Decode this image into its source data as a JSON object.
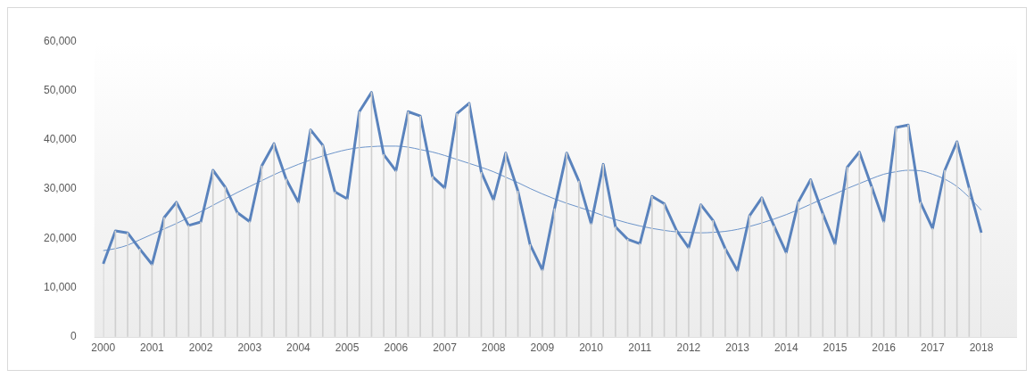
{
  "chart_data": {
    "type": "line",
    "categories": [
      "2000",
      null,
      null,
      null,
      "2001",
      null,
      null,
      null,
      "2002",
      null,
      null,
      null,
      "2003",
      null,
      null,
      null,
      "2004",
      null,
      null,
      null,
      "2005",
      null,
      null,
      null,
      "2006",
      null,
      null,
      null,
      "2007",
      null,
      null,
      null,
      "2008",
      null,
      null,
      null,
      "2009",
      null,
      null,
      null,
      "2010",
      null,
      null,
      null,
      "2011",
      null,
      null,
      null,
      "2012",
      null,
      null,
      null,
      "2013",
      null,
      null,
      null,
      "2014",
      null,
      null,
      null,
      "2015",
      null,
      null,
      null,
      "2016",
      null,
      null,
      null,
      "2017",
      null,
      null,
      null,
      "2018"
    ],
    "series": [
      {
        "color": "#5a83bd",
        "values": [
          14800,
          21500,
          21100,
          17800,
          14700,
          24200,
          27300,
          22600,
          23300,
          33800,
          30400,
          25200,
          23400,
          34700,
          39200,
          32000,
          27300,
          42000,
          38900,
          29400,
          28000,
          45700,
          49600,
          37000,
          33700,
          45700,
          44800,
          32500,
          30200,
          45300,
          47400,
          33400,
          27800,
          37300,
          29600,
          18700,
          13600,
          26000,
          37300,
          31600,
          23000,
          35000,
          22300,
          19800,
          18900,
          28500,
          27000,
          21600,
          18100,
          26800,
          23600,
          17900,
          13400,
          24600,
          28200,
          22500,
          17100,
          27400,
          31900,
          25000,
          18800,
          34400,
          37500,
          30500,
          23400,
          42500,
          43000,
          27300,
          22000,
          33800,
          39600,
          30200,
          21100
        ]
      },
      {
        "type": "bar",
        "color": "#d0d0d0",
        "values": [
          14800,
          21500,
          21100,
          17800,
          14700,
          24200,
          27300,
          22600,
          23300,
          33800,
          30400,
          25200,
          23400,
          34700,
          39200,
          32000,
          27300,
          42000,
          38900,
          29400,
          28000,
          45700,
          49600,
          37000,
          33700,
          45700,
          44800,
          32500,
          30200,
          45300,
          47400,
          33400,
          27800,
          37300,
          29600,
          18700,
          13600,
          26000,
          37300,
          31600,
          23000,
          35000,
          22300,
          19800,
          18900,
          28500,
          27000,
          21600,
          18100,
          26800,
          23600,
          17900,
          13400,
          24600,
          28200,
          22500,
          17100,
          27400,
          31900,
          25000,
          18800,
          34400,
          37500,
          30500,
          23400,
          42500,
          43000,
          27300,
          22000,
          33800,
          39600,
          30200,
          21100
        ]
      },
      {
        "type": "line",
        "color": "#6b93c9",
        "values": [
          17500,
          17900,
          18600,
          19700,
          20800,
          21900,
          23000,
          24200,
          25400,
          26700,
          28000,
          29300,
          30500,
          31700,
          32900,
          34000,
          35000,
          35900,
          36700,
          37400,
          38000,
          38400,
          38600,
          38700,
          38700,
          38500,
          38000,
          37500,
          36800,
          36000,
          35200,
          34400,
          33500,
          32400,
          31300,
          30100,
          29000,
          28000,
          27100,
          26300,
          25500,
          24600,
          23800,
          23100,
          22500,
          22000,
          21600,
          21300,
          21200,
          21100,
          21200,
          21400,
          21800,
          22400,
          23100,
          23900,
          24800,
          25800,
          26900,
          28000,
          29000,
          30100,
          31100,
          32100,
          33000,
          33500,
          33800,
          33700,
          33000,
          32000,
          30500,
          28300,
          25700
        ]
      }
    ],
    "ylim": [
      0,
      60000
    ],
    "yticks": [
      0,
      {
        "value": 10000,
        "label": "10,000"
      },
      {
        "value": 20000,
        "label": "20,000"
      },
      {
        "value": 30000,
        "label": "30,000"
      },
      {
        "value": 40000,
        "label": "40,000"
      },
      {
        "value": 50000,
        "label": "50,000"
      },
      {
        "value": 60000,
        "label": "60,000"
      }
    ],
    "grid": false,
    "legend": false,
    "marker": "none"
  }
}
